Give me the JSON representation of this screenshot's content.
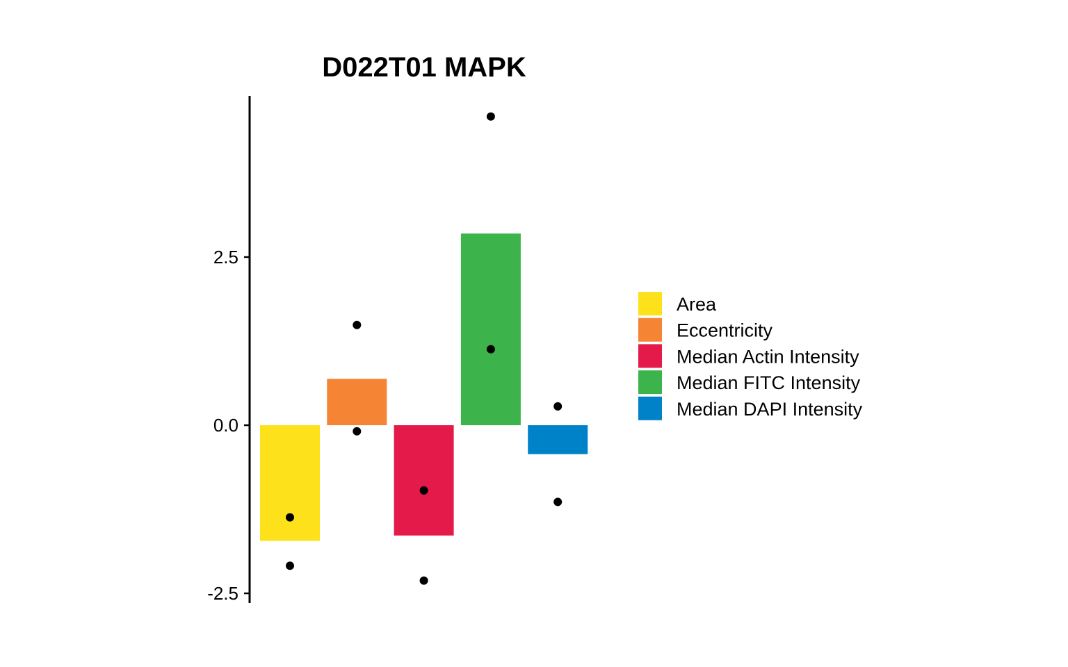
{
  "chart_data": {
    "type": "bar",
    "title": "D022T01 MAPK",
    "xlabel": "",
    "ylabel": "",
    "ylim": [
      -2.6,
      4.95
    ],
    "yticks": [
      2.5,
      0.0,
      -2.5
    ],
    "ytick_labels": [
      "2.5",
      "0.0",
      "-2.5"
    ],
    "grid": false,
    "legend_position": "right",
    "categories": [
      "Area",
      "Eccentricity",
      "Median Actin Intensity",
      "Median FITC Intensity",
      "Median DAPI Intensity"
    ],
    "colors": [
      "#FDE21B",
      "#F58534",
      "#E41A4A",
      "#3CB44B",
      "#0082C8"
    ],
    "values": [
      -1.72,
      0.69,
      -1.64,
      2.85,
      -0.43
    ],
    "points": [
      [
        -1.37,
        -2.09
      ],
      [
        1.49,
        -0.09
      ],
      [
        -0.97,
        -2.31
      ],
      [
        4.59,
        1.13
      ],
      [
        0.28,
        -1.14
      ]
    ]
  }
}
